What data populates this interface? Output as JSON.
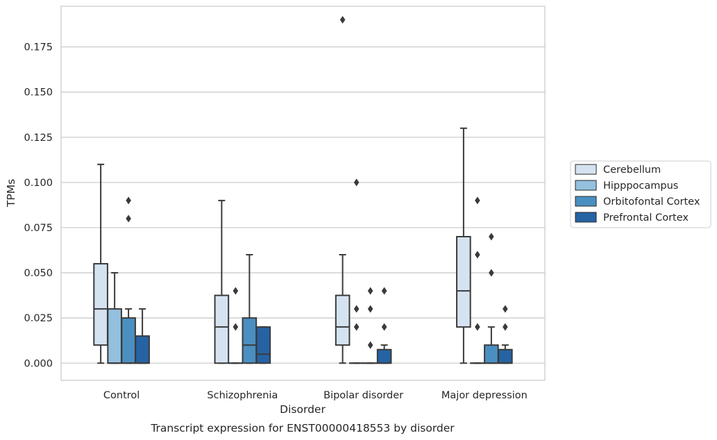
{
  "chart_data": {
    "type": "boxplot",
    "title": "",
    "caption": "Transcript expression for ENST00000418553 by disorder",
    "xlabel": "Disorder",
    "ylabel": "TPMs",
    "ylim": [
      -0.0095,
      0.1975
    ],
    "yticks": [
      0.0,
      0.025,
      0.05,
      0.075,
      0.1,
      0.125,
      0.15,
      0.175
    ],
    "ytick_labels": [
      "0.000",
      "0.025",
      "0.050",
      "0.075",
      "0.100",
      "0.125",
      "0.150",
      "0.175"
    ],
    "grid": "horizontal",
    "legend_position": "right",
    "categories": [
      "Control",
      "Schizophrenia",
      "Bipolar disorder",
      "Major depression"
    ],
    "series": [
      {
        "name": "Cerebellum",
        "color": "#d5e3f1",
        "boxes": [
          {
            "whisker_low": 0.0,
            "q1": 0.01,
            "median": 0.03,
            "q3": 0.055,
            "whisker_high": 0.11,
            "outliers": []
          },
          {
            "whisker_low": 0.0,
            "q1": 0.0,
            "median": 0.02,
            "q3": 0.0375,
            "whisker_high": 0.09,
            "outliers": []
          },
          {
            "whisker_low": 0.0,
            "q1": 0.01,
            "median": 0.02,
            "q3": 0.0375,
            "whisker_high": 0.06,
            "outliers": [
              0.19
            ]
          },
          {
            "whisker_low": 0.0,
            "q1": 0.02,
            "median": 0.04,
            "q3": 0.07,
            "whisker_high": 0.13,
            "outliers": []
          }
        ]
      },
      {
        "name": "Hipppocampus",
        "color": "#94c0de",
        "boxes": [
          {
            "whisker_low": 0.0,
            "q1": 0.0,
            "median": 0.0,
            "q3": 0.03,
            "whisker_high": 0.05,
            "outliers": []
          },
          {
            "whisker_low": 0.0,
            "q1": 0.0,
            "median": 0.0,
            "q3": 0.0,
            "whisker_high": 0.0,
            "outliers": [
              0.02,
              0.04
            ]
          },
          {
            "whisker_low": 0.0,
            "q1": 0.0,
            "median": 0.0,
            "q3": 0.0,
            "whisker_high": 0.0,
            "outliers": [
              0.02,
              0.03,
              0.1
            ]
          },
          {
            "whisker_low": 0.0,
            "q1": 0.0,
            "median": 0.0,
            "q3": 0.0,
            "whisker_high": 0.0,
            "outliers": [
              0.02,
              0.06,
              0.09
            ]
          }
        ]
      },
      {
        "name": "Orbitofontal Cortex",
        "color": "#4b8fc1",
        "boxes": [
          {
            "whisker_low": 0.0,
            "q1": 0.0,
            "median": 0.0,
            "q3": 0.025,
            "whisker_high": 0.03,
            "outliers": [
              0.08,
              0.09
            ]
          },
          {
            "whisker_low": 0.0,
            "q1": 0.0,
            "median": 0.01,
            "q3": 0.025,
            "whisker_high": 0.06,
            "outliers": []
          },
          {
            "whisker_low": 0.0,
            "q1": 0.0,
            "median": 0.0,
            "q3": 0.0,
            "whisker_high": 0.0,
            "outliers": [
              0.01,
              0.03,
              0.04
            ]
          },
          {
            "whisker_low": 0.0,
            "q1": 0.0,
            "median": 0.0,
            "q3": 0.01,
            "whisker_high": 0.02,
            "outliers": [
              0.05,
              0.07
            ]
          }
        ]
      },
      {
        "name": "Prefrontal Cortex",
        "color": "#2663a4",
        "boxes": [
          {
            "whisker_low": 0.0,
            "q1": 0.0,
            "median": 0.0,
            "q3": 0.015,
            "whisker_high": 0.03,
            "outliers": []
          },
          {
            "whisker_low": 0.0,
            "q1": 0.0,
            "median": 0.005,
            "q3": 0.02,
            "whisker_high": 0.02,
            "outliers": []
          },
          {
            "whisker_low": 0.0,
            "q1": 0.0,
            "median": 0.0,
            "q3": 0.0075,
            "whisker_high": 0.01,
            "outliers": [
              0.02,
              0.04
            ]
          },
          {
            "whisker_low": 0.0,
            "q1": 0.0,
            "median": 0.0,
            "q3": 0.0075,
            "whisker_high": 0.01,
            "outliers": [
              0.02,
              0.03
            ]
          }
        ]
      }
    ]
  }
}
